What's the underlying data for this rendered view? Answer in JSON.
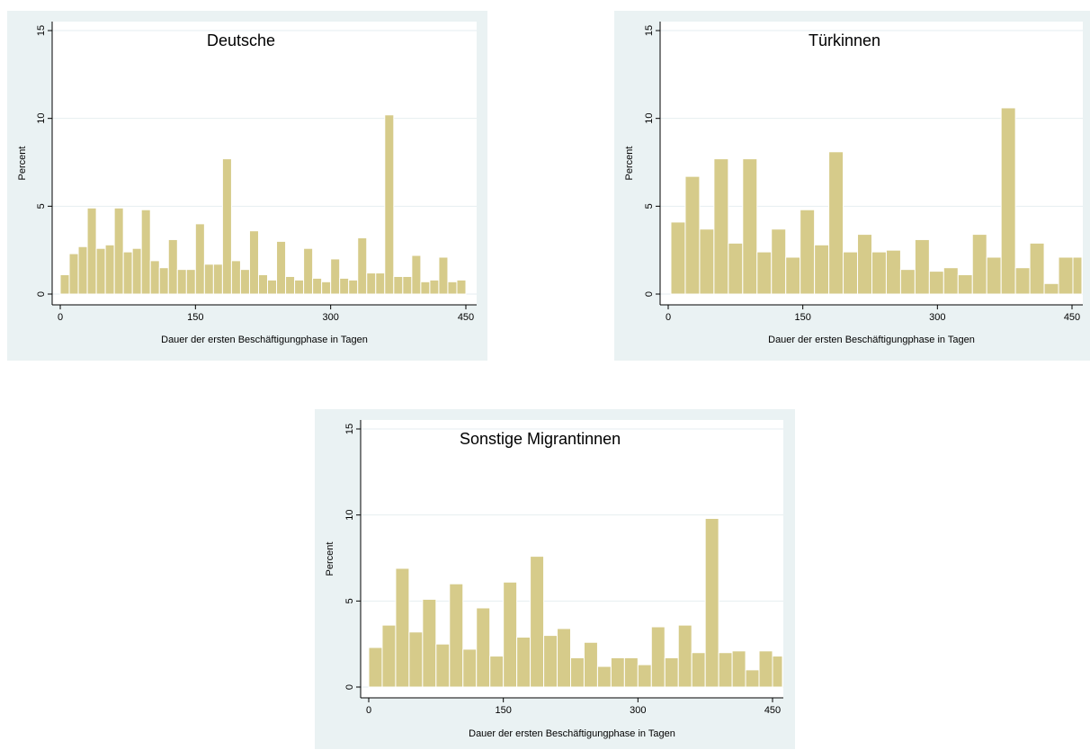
{
  "bar_color": "#d6cb8a",
  "bar_edge_color": "#ffffff",
  "grid_color": "#e6eef0",
  "panel_color": "#eaf2f3",
  "chart_data": [
    {
      "type": "bar",
      "title": "Deutsche",
      "xlabel": "Dauer der ersten Beschäftigungphase in Tagen",
      "ylabel": "Percent",
      "xlim": [
        0,
        450
      ],
      "ylim": [
        0,
        15
      ],
      "xticks": [
        "0",
        "150",
        "300",
        "450"
      ],
      "yticks": [
        "0",
        "5",
        "10",
        "15"
      ],
      "grid": true,
      "bins": [
        {
          "x0": 0,
          "x1": 10,
          "value": 1.1
        },
        {
          "x0": 10,
          "x1": 20,
          "value": 2.3
        },
        {
          "x0": 20,
          "x1": 30,
          "value": 2.7
        },
        {
          "x0": 30,
          "x1": 40,
          "value": 4.9
        },
        {
          "x0": 40,
          "x1": 50,
          "value": 2.6
        },
        {
          "x0": 50,
          "x1": 60,
          "value": 2.8
        },
        {
          "x0": 60,
          "x1": 70,
          "value": 4.9
        },
        {
          "x0": 70,
          "x1": 80,
          "value": 2.4
        },
        {
          "x0": 80,
          "x1": 90,
          "value": 2.6
        },
        {
          "x0": 90,
          "x1": 100,
          "value": 4.8
        },
        {
          "x0": 100,
          "x1": 110,
          "value": 1.9
        },
        {
          "x0": 110,
          "x1": 120,
          "value": 1.5
        },
        {
          "x0": 120,
          "x1": 130,
          "value": 3.1
        },
        {
          "x0": 130,
          "x1": 140,
          "value": 1.4
        },
        {
          "x0": 140,
          "x1": 150,
          "value": 1.4
        },
        {
          "x0": 150,
          "x1": 160,
          "value": 4.0
        },
        {
          "x0": 160,
          "x1": 170,
          "value": 1.7
        },
        {
          "x0": 170,
          "x1": 180,
          "value": 1.7
        },
        {
          "x0": 180,
          "x1": 190,
          "value": 7.7
        },
        {
          "x0": 190,
          "x1": 200,
          "value": 1.9
        },
        {
          "x0": 200,
          "x1": 210,
          "value": 1.4
        },
        {
          "x0": 210,
          "x1": 220,
          "value": 3.6
        },
        {
          "x0": 220,
          "x1": 230,
          "value": 1.1
        },
        {
          "x0": 230,
          "x1": 240,
          "value": 0.8
        },
        {
          "x0": 240,
          "x1": 250,
          "value": 3.0
        },
        {
          "x0": 250,
          "x1": 260,
          "value": 1.0
        },
        {
          "x0": 260,
          "x1": 270,
          "value": 0.8
        },
        {
          "x0": 270,
          "x1": 280,
          "value": 2.6
        },
        {
          "x0": 280,
          "x1": 290,
          "value": 0.9
        },
        {
          "x0": 290,
          "x1": 300,
          "value": 0.7
        },
        {
          "x0": 300,
          "x1": 310,
          "value": 2.0
        },
        {
          "x0": 310,
          "x1": 320,
          "value": 0.9
        },
        {
          "x0": 320,
          "x1": 330,
          "value": 0.8
        },
        {
          "x0": 330,
          "x1": 340,
          "value": 3.2
        },
        {
          "x0": 340,
          "x1": 350,
          "value": 1.2
        },
        {
          "x0": 350,
          "x1": 360,
          "value": 1.2
        },
        {
          "x0": 360,
          "x1": 370,
          "value": 10.2
        },
        {
          "x0": 370,
          "x1": 380,
          "value": 1.0
        },
        {
          "x0": 380,
          "x1": 390,
          "value": 1.0
        },
        {
          "x0": 390,
          "x1": 400,
          "value": 2.2
        },
        {
          "x0": 400,
          "x1": 410,
          "value": 0.7
        },
        {
          "x0": 410,
          "x1": 420,
          "value": 0.8
        },
        {
          "x0": 420,
          "x1": 430,
          "value": 2.1
        },
        {
          "x0": 430,
          "x1": 440,
          "value": 0.7
        },
        {
          "x0": 440,
          "x1": 450,
          "value": 0.8
        }
      ]
    },
    {
      "type": "bar",
      "title": "Türkinnen",
      "xlabel": "Dauer der ersten Beschäftigungphase in Tagen",
      "ylabel": "Percent",
      "xlim": [
        0,
        450
      ],
      "ylim": [
        0,
        15
      ],
      "xticks": [
        "0",
        "150",
        "300",
        "450"
      ],
      "yticks": [
        "0",
        "5",
        "10",
        "15"
      ],
      "grid": true,
      "bins": [
        {
          "x0": 3,
          "x1": 19,
          "value": 4.1
        },
        {
          "x0": 19,
          "x1": 35,
          "value": 6.7
        },
        {
          "x0": 35,
          "x1": 51,
          "value": 3.7
        },
        {
          "x0": 51,
          "x1": 67,
          "value": 7.7
        },
        {
          "x0": 67,
          "x1": 83,
          "value": 2.9
        },
        {
          "x0": 83,
          "x1": 99,
          "value": 7.7
        },
        {
          "x0": 99,
          "x1": 115,
          "value": 2.4
        },
        {
          "x0": 115,
          "x1": 131,
          "value": 3.7
        },
        {
          "x0": 131,
          "x1": 147,
          "value": 2.1
        },
        {
          "x0": 147,
          "x1": 163,
          "value": 4.8
        },
        {
          "x0": 163,
          "x1": 179,
          "value": 2.8
        },
        {
          "x0": 179,
          "x1": 195,
          "value": 8.1
        },
        {
          "x0": 195,
          "x1": 211,
          "value": 2.4
        },
        {
          "x0": 211,
          "x1": 227,
          "value": 3.4
        },
        {
          "x0": 227,
          "x1": 243,
          "value": 2.4
        },
        {
          "x0": 243,
          "x1": 259,
          "value": 2.5
        },
        {
          "x0": 259,
          "x1": 275,
          "value": 1.4
        },
        {
          "x0": 275,
          "x1": 291,
          "value": 3.1
        },
        {
          "x0": 291,
          "x1": 307,
          "value": 1.3
        },
        {
          "x0": 307,
          "x1": 323,
          "value": 1.5
        },
        {
          "x0": 323,
          "x1": 339,
          "value": 1.1
        },
        {
          "x0": 339,
          "x1": 355,
          "value": 3.4
        },
        {
          "x0": 355,
          "x1": 371,
          "value": 2.1
        },
        {
          "x0": 371,
          "x1": 387,
          "value": 10.6
        },
        {
          "x0": 387,
          "x1": 403,
          "value": 1.5
        },
        {
          "x0": 403,
          "x1": 419,
          "value": 2.9
        },
        {
          "x0": 419,
          "x1": 435,
          "value": 0.6
        },
        {
          "x0": 435,
          "x1": 451,
          "value": 2.1
        },
        {
          "x0": 451,
          "x1": 467,
          "value": 2.1
        }
      ]
    },
    {
      "type": "bar",
      "title": "Sonstige Migrantinnen",
      "xlabel": "Dauer der ersten Beschäftigungphase in Tagen",
      "ylabel": "Percent",
      "xlim": [
        0,
        450
      ],
      "ylim": [
        0,
        15
      ],
      "xticks": [
        "0",
        "150",
        "300",
        "450"
      ],
      "yticks": [
        "0",
        "5",
        "10",
        "15"
      ],
      "grid": true,
      "bins": [
        {
          "x0": 0,
          "x1": 15,
          "value": 2.3
        },
        {
          "x0": 15,
          "x1": 30,
          "value": 3.6
        },
        {
          "x0": 30,
          "x1": 45,
          "value": 6.9
        },
        {
          "x0": 45,
          "x1": 60,
          "value": 3.2
        },
        {
          "x0": 60,
          "x1": 75,
          "value": 5.1
        },
        {
          "x0": 75,
          "x1": 90,
          "value": 2.5
        },
        {
          "x0": 90,
          "x1": 105,
          "value": 6.0
        },
        {
          "x0": 105,
          "x1": 120,
          "value": 2.2
        },
        {
          "x0": 120,
          "x1": 135,
          "value": 4.6
        },
        {
          "x0": 135,
          "x1": 150,
          "value": 1.8
        },
        {
          "x0": 150,
          "x1": 165,
          "value": 6.1
        },
        {
          "x0": 165,
          "x1": 180,
          "value": 2.9
        },
        {
          "x0": 180,
          "x1": 195,
          "value": 7.6
        },
        {
          "x0": 195,
          "x1": 210,
          "value": 3.0
        },
        {
          "x0": 210,
          "x1": 225,
          "value": 3.4
        },
        {
          "x0": 225,
          "x1": 240,
          "value": 1.7
        },
        {
          "x0": 240,
          "x1": 255,
          "value": 2.6
        },
        {
          "x0": 255,
          "x1": 270,
          "value": 1.2
        },
        {
          "x0": 270,
          "x1": 285,
          "value": 1.7
        },
        {
          "x0": 285,
          "x1": 300,
          "value": 1.7
        },
        {
          "x0": 300,
          "x1": 315,
          "value": 1.3
        },
        {
          "x0": 315,
          "x1": 330,
          "value": 3.5
        },
        {
          "x0": 330,
          "x1": 345,
          "value": 1.7
        },
        {
          "x0": 345,
          "x1": 360,
          "value": 3.6
        },
        {
          "x0": 360,
          "x1": 375,
          "value": 2.0
        },
        {
          "x0": 375,
          "x1": 390,
          "value": 9.8
        },
        {
          "x0": 390,
          "x1": 405,
          "value": 2.0
        },
        {
          "x0": 405,
          "x1": 420,
          "value": 2.1
        },
        {
          "x0": 420,
          "x1": 435,
          "value": 1.0
        },
        {
          "x0": 435,
          "x1": 450,
          "value": 2.1
        },
        {
          "x0": 450,
          "x1": 465,
          "value": 1.8
        }
      ]
    }
  ]
}
